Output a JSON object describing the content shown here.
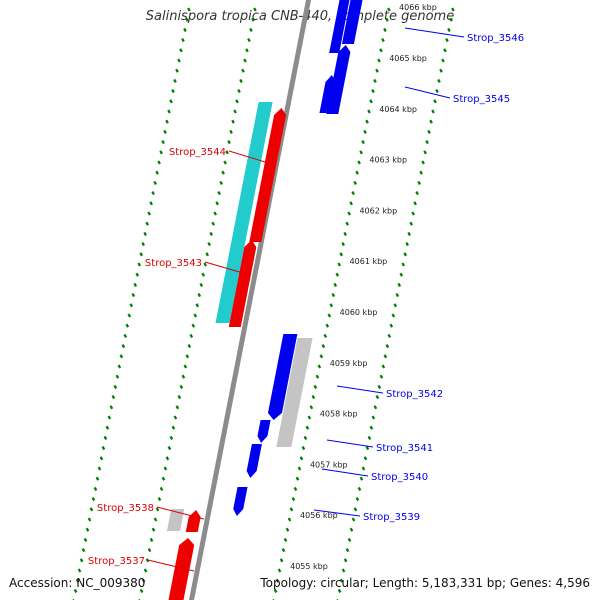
{
  "title": "Salinispora tropica CNB-440, complete genome",
  "footer": {
    "accession": "Accession: NC_009380",
    "topology": "Topology: circular; Length: 5,183,331 bp; Genes: 4,596"
  },
  "colors": {
    "forward_gene": "#0000ee",
    "reverse_gene": "#ee0000",
    "cyan_feature": "#22cccc",
    "other_feature": "#c4c4c4",
    "backbone": "#8c8c8c",
    "tick": "#008000",
    "forward_label": "#0000ee",
    "reverse_label": "#dd0000"
  },
  "scale_labels": [
    "4055 kbp",
    "4056 kbp",
    "4057 kbp",
    "4058 kbp",
    "4059 kbp",
    "4060 kbp",
    "4061 kbp",
    "4062 kbp",
    "4063 kbp",
    "4064 kbp",
    "4065 kbp",
    "4066 kbp"
  ],
  "gene_labels": [
    {
      "text": "Strop_3546",
      "strand": "forward"
    },
    {
      "text": "Strop_3545",
      "strand": "forward"
    },
    {
      "text": "Strop_3544",
      "strand": "reverse"
    },
    {
      "text": "Strop_3543",
      "strand": "reverse"
    },
    {
      "text": "Strop_3542",
      "strand": "forward"
    },
    {
      "text": "Strop_3541",
      "strand": "forward"
    },
    {
      "text": "Strop_3540",
      "strand": "forward"
    },
    {
      "text": "Strop_3539",
      "strand": "forward"
    },
    {
      "text": "Strop_3538",
      "strand": "reverse"
    },
    {
      "text": "Strop_3537",
      "strand": "reverse"
    }
  ]
}
